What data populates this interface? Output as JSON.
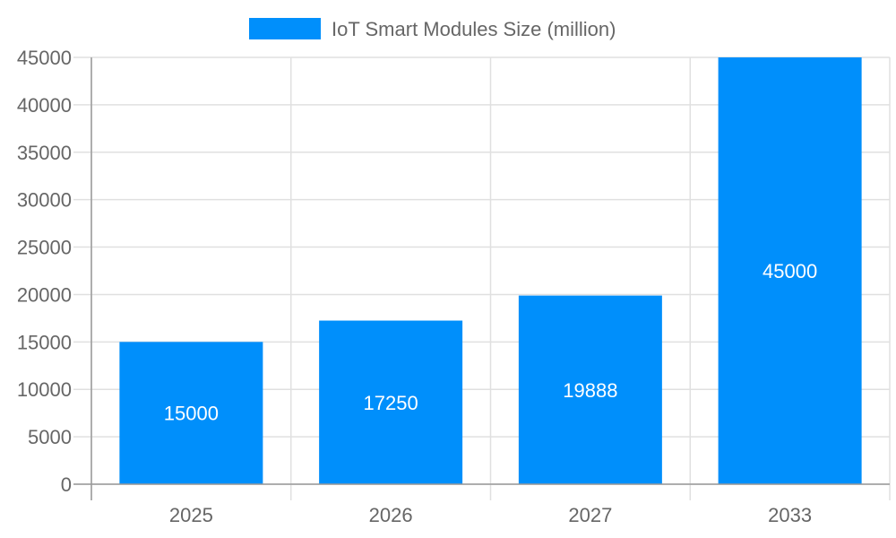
{
  "chart_data": {
    "type": "bar",
    "categories": [
      "2025",
      "2026",
      "2027",
      "2033"
    ],
    "series": [
      {
        "name": "IoT Smart Modules Size (million)",
        "values": [
          15000,
          17250,
          19888,
          45000
        ],
        "color": "#008ffb"
      }
    ],
    "data_labels": [
      "15000",
      "17250",
      "19888",
      "45000"
    ],
    "ylim": [
      0,
      45000
    ],
    "yticks": [
      "0",
      "5000",
      "10000",
      "15000",
      "20000",
      "25000",
      "30000",
      "35000",
      "40000",
      "45000"
    ],
    "grid": true,
    "legend": "top-center",
    "xlabel": "",
    "ylabel": "",
    "title": ""
  }
}
